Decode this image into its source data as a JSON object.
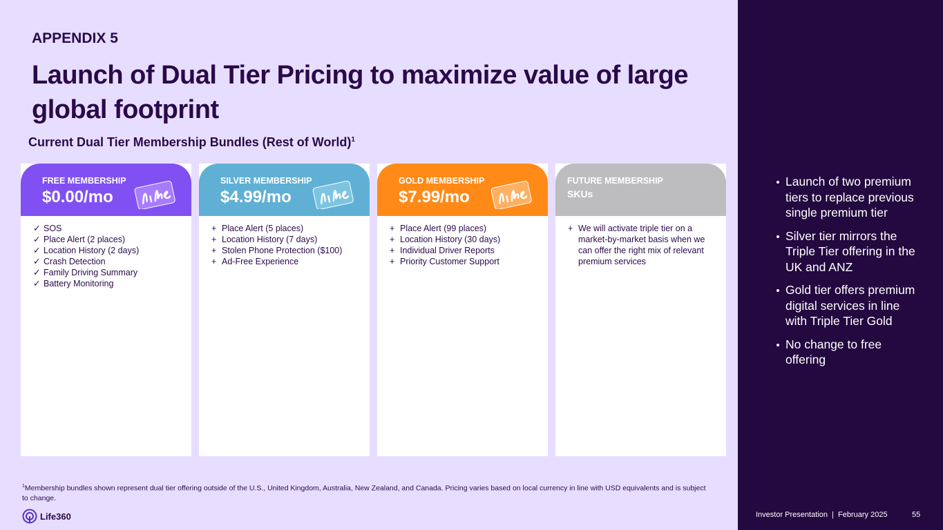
{
  "header": {
    "appendix": "APPENDIX 5",
    "title": "Launch of Dual Tier Pricing to maximize value of large global footprint",
    "subtitle": "Current Dual Tier Membership Bundles (Rest of World)",
    "subtitle_note": "1"
  },
  "cards": [
    {
      "label": "FREE MEMBERSHIP",
      "price": "$0.00/mo",
      "marker": "✓",
      "features": [
        "SOS",
        "Place Alert (2 places)",
        "Location History (2 days)",
        "Crash Detection",
        "Family Driving Summary",
        "Battery Monitoring"
      ]
    },
    {
      "label": "SILVER MEMBERSHIP",
      "price": "$4.99/mo",
      "marker": "+",
      "features": [
        "Place Alert (5 places)",
        "Location History (7 days)",
        "Stolen Phone Protection ($100)",
        "Ad-Free Experience"
      ]
    },
    {
      "label": "GOLD MEMBERSHIP",
      "price": "$7.99/mo",
      "marker": "+",
      "features": [
        "Place Alert (99 places)",
        "Location History (30 days)",
        "Individual Driver Reports",
        "Priority Customer Support"
      ]
    },
    {
      "label": "FUTURE MEMBERSHIP",
      "price": "SKUs",
      "marker": "+",
      "features": [
        "We will activate triple tier on a market-by-market basis when we can offer the right mix of relevant premium services"
      ]
    }
  ],
  "sidebar": {
    "bullets": [
      "Launch of two premium tiers to replace previous single premium tier",
      "Silver tier mirrors the Triple Tier offering in the UK and ANZ",
      "Gold tier offers premium digital services in line with Triple Tier Gold",
      "No change to free offering"
    ]
  },
  "footnote": {
    "mark": "1",
    "text": "Membership bundles shown represent dual tier offering outside of the U.S., United Kingdom, Australia, New Zealand, and Canada. Pricing varies based on local currency in line with USD equivalents and is subject to change."
  },
  "footer": {
    "logo": "Life360",
    "presentation": "Investor Presentation  |  February 2025",
    "page": "55"
  }
}
